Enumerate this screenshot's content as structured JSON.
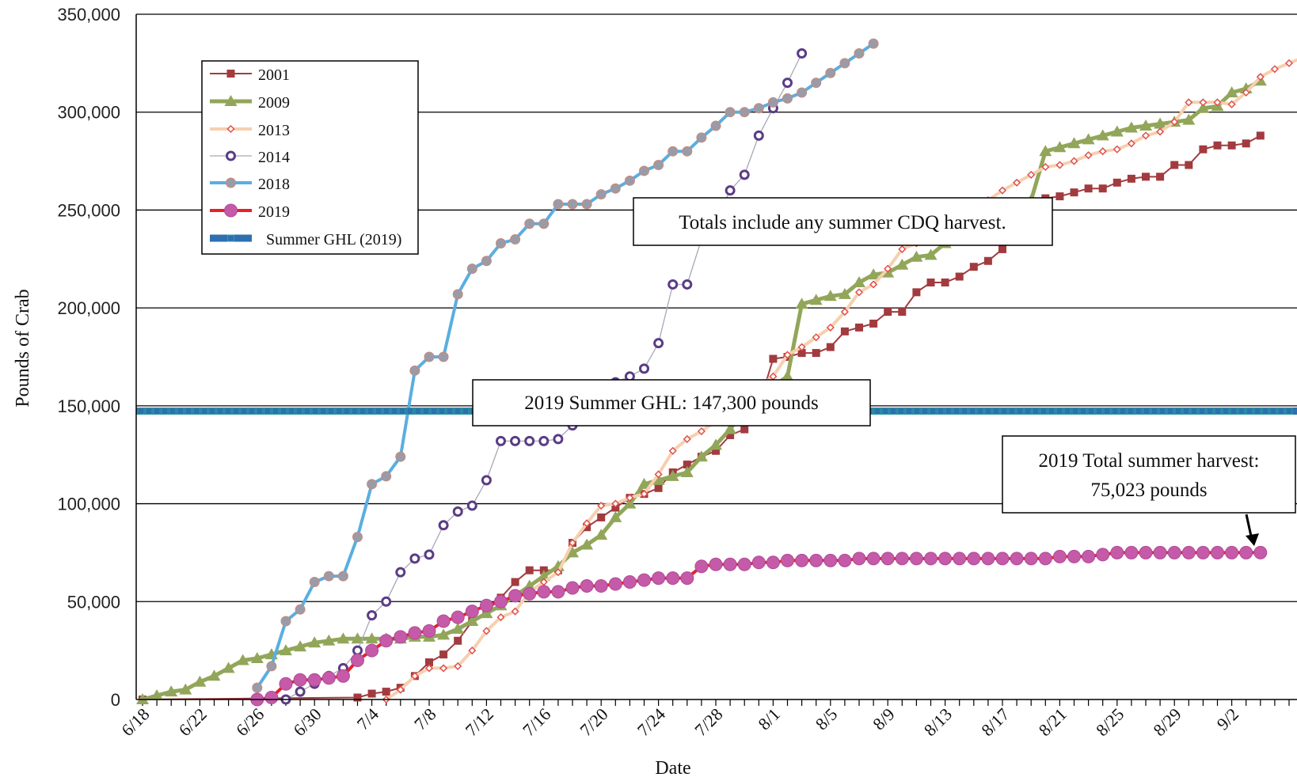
{
  "chart_data": {
    "type": "line",
    "title": "",
    "xlabel": "Date",
    "ylabel": "Pounds of Crab",
    "ylim": [
      0,
      350000
    ],
    "yticks": [
      0,
      50000,
      100000,
      150000,
      200000,
      250000,
      300000,
      350000
    ],
    "ytick_labels": [
      "0",
      "50,000",
      "100,000",
      "150,000",
      "200,000",
      "250,000",
      "300,000",
      "350,000"
    ],
    "x_start": "6/18",
    "xtick_labels": [
      "6/18",
      "6/22",
      "6/26",
      "6/30",
      "7/4",
      "7/8",
      "7/12",
      "7/16",
      "7/20",
      "7/24",
      "7/28",
      "8/1",
      "8/5",
      "8/9",
      "8/13",
      "8/17",
      "8/21",
      "8/25",
      "8/29",
      "9/2"
    ],
    "grid": "horizontal",
    "legend_position": "top-left",
    "series": [
      {
        "name": "2001",
        "color": "#a23b3f",
        "marker": "square",
        "x": [
          0,
          15,
          16,
          17,
          18,
          19,
          20,
          21,
          22,
          23,
          24,
          25,
          26,
          27,
          28,
          29,
          30,
          31,
          32,
          33,
          34,
          35,
          36,
          37,
          38,
          39,
          40,
          41,
          42,
          43,
          44,
          45,
          46,
          47,
          48,
          49,
          50,
          51,
          52,
          53,
          54,
          55,
          56,
          57,
          58,
          59,
          60,
          61,
          62,
          63,
          64,
          65,
          66,
          67,
          68,
          69,
          70,
          71,
          72,
          73,
          74,
          75,
          76,
          77,
          78
        ],
        "y": [
          0,
          1000,
          3000,
          4000,
          6000,
          12000,
          19000,
          23000,
          30000,
          40000,
          45000,
          52000,
          60000,
          66000,
          66000,
          66000,
          80000,
          88000,
          93000,
          98000,
          103000,
          105000,
          108000,
          116000,
          120000,
          124000,
          127000,
          135000,
          138000,
          150000,
          174000,
          175000,
          177000,
          177000,
          180000,
          188000,
          190000,
          192000,
          198000,
          198000,
          208000,
          213000,
          213000,
          216000,
          221000,
          224000,
          230000,
          240000,
          254000,
          256000,
          257000,
          259000,
          261000,
          261000,
          264000,
          266000,
          267000,
          267000,
          273000,
          273000,
          281000,
          283000,
          283000,
          284000,
          288000
        ]
      },
      {
        "name": "2009",
        "color": "#92a65a",
        "marker": "triangle",
        "x": [
          0,
          1,
          2,
          3,
          4,
          5,
          6,
          7,
          8,
          9,
          10,
          11,
          12,
          13,
          14,
          15,
          16,
          17,
          18,
          19,
          20,
          21,
          22,
          23,
          24,
          25,
          26,
          27,
          28,
          29,
          30,
          31,
          32,
          33,
          34,
          35,
          36,
          37,
          38,
          39,
          40,
          41,
          42,
          43,
          44,
          45,
          46,
          47,
          48,
          49,
          50,
          51,
          52,
          53,
          54,
          55,
          56,
          57,
          58,
          59,
          60,
          61,
          62,
          63,
          64,
          65,
          66,
          67,
          68,
          69,
          70,
          71,
          72,
          73,
          74,
          75,
          76,
          77,
          78
        ],
        "y": [
          0,
          2000,
          4000,
          5000,
          9000,
          12000,
          16000,
          20000,
          21000,
          23000,
          25000,
          27000,
          29000,
          30000,
          31000,
          31000,
          31000,
          31000,
          31000,
          32000,
          32000,
          33000,
          36000,
          40000,
          44000,
          48000,
          53000,
          58000,
          63000,
          68000,
          75000,
          79000,
          84000,
          93000,
          100000,
          110000,
          112000,
          114000,
          116000,
          124000,
          130000,
          138000,
          148000,
          155000,
          160000,
          165000,
          202000,
          204000,
          206000,
          207000,
          213000,
          217000,
          218000,
          222000,
          226000,
          227000,
          233000,
          238000,
          240000,
          245000,
          250000,
          252000,
          255000,
          280000,
          282000,
          284000,
          286000,
          288000,
          290000,
          292000,
          293000,
          294000,
          295000,
          296000,
          302000,
          303000,
          310000,
          312000,
          316000
        ]
      },
      {
        "name": "2013",
        "color": "#e0504a",
        "line_color": "#f7cfaf",
        "marker": "diamond",
        "x": [
          17,
          18,
          19,
          20,
          21,
          22,
          23,
          24,
          25,
          26,
          27,
          28,
          29,
          30,
          31,
          32,
          33,
          34,
          35,
          36,
          37,
          38,
          39,
          40,
          41,
          42,
          43,
          44,
          45,
          46,
          47,
          48,
          49,
          50,
          51,
          52,
          53,
          54,
          55,
          56,
          57,
          58,
          59,
          60,
          61,
          62,
          63,
          64,
          65,
          66,
          67,
          68,
          69,
          70,
          71,
          72,
          73,
          74,
          75,
          76,
          77,
          78,
          79,
          80,
          81
        ],
        "y": [
          0,
          5000,
          12000,
          16000,
          16000,
          17000,
          25000,
          35000,
          42000,
          45000,
          55000,
          60000,
          65000,
          80000,
          90000,
          99000,
          100000,
          103000,
          105000,
          115000,
          127000,
          133000,
          137000,
          142000,
          148000,
          155000,
          160000,
          165000,
          176000,
          180000,
          185000,
          190000,
          198000,
          208000,
          212000,
          220000,
          230000,
          233000,
          238000,
          243000,
          248000,
          252000,
          255000,
          260000,
          264000,
          268000,
          272000,
          273000,
          275000,
          278000,
          280000,
          281000,
          284000,
          288000,
          290000,
          295000,
          305000,
          305000,
          305000,
          304000,
          310000,
          318000,
          322000,
          325000,
          328000
        ]
      },
      {
        "name": "2014",
        "color": "#5a3c86",
        "line_color": "#a8a8b8",
        "marker": "circle-open",
        "x": [
          10,
          11,
          12,
          13,
          14,
          15,
          16,
          17,
          18,
          19,
          20,
          21,
          22,
          23,
          24,
          25,
          26,
          27,
          28,
          29,
          30,
          31,
          32,
          33,
          34,
          35,
          36,
          37,
          38,
          39,
          40,
          41,
          42,
          43,
          44,
          45,
          46
        ],
        "y": [
          0,
          4000,
          8000,
          12000,
          16000,
          25000,
          43000,
          50000,
          65000,
          72000,
          74000,
          89000,
          96000,
          99000,
          112000,
          132000,
          132000,
          132000,
          132000,
          133000,
          140000,
          148000,
          155000,
          162000,
          165000,
          169000,
          182000,
          212000,
          212000,
          235000,
          245000,
          260000,
          268000,
          288000,
          302000,
          315000,
          330000
        ]
      },
      {
        "name": "2018",
        "color": "#9b9ba8",
        "line_color": "#5aaee0",
        "marker": "circle",
        "x": [
          8,
          9,
          10,
          11,
          12,
          13,
          14,
          15,
          16,
          17,
          18,
          19,
          20,
          21,
          22,
          23,
          24,
          25,
          26,
          27,
          28,
          29,
          30,
          31,
          32,
          33,
          34,
          35,
          36,
          37,
          38,
          39,
          40,
          41,
          42,
          43,
          44,
          45,
          46,
          47,
          48,
          49,
          50,
          51
        ],
        "y": [
          6000,
          17000,
          40000,
          46000,
          60000,
          63000,
          63000,
          83000,
          110000,
          114000,
          124000,
          168000,
          175000,
          175000,
          207000,
          220000,
          224000,
          233000,
          235000,
          243000,
          243000,
          253000,
          253000,
          253000,
          258000,
          261000,
          265000,
          270000,
          273000,
          280000,
          280000,
          287000,
          293000,
          300000,
          300000,
          302000,
          305000,
          307000,
          310000,
          315000,
          320000,
          325000,
          330000,
          335000
        ]
      },
      {
        "name": "2019",
        "color": "#c55aa8",
        "line_color": "#e8202a",
        "marker": "circle-big",
        "x": [
          8,
          9,
          10,
          11,
          12,
          13,
          14,
          15,
          16,
          17,
          18,
          19,
          20,
          21,
          22,
          23,
          24,
          25,
          26,
          27,
          28,
          29,
          30,
          31,
          32,
          33,
          34,
          35,
          36,
          37,
          38,
          39,
          40,
          41,
          42,
          43,
          44,
          45,
          46,
          47,
          48,
          49,
          50,
          51,
          52,
          53,
          54,
          55,
          56,
          57,
          58,
          59,
          60,
          61,
          62,
          63,
          64,
          65,
          66,
          67,
          68,
          69,
          70,
          71,
          72,
          73,
          74,
          75,
          76,
          77,
          78
        ],
        "y": [
          0,
          1000,
          8000,
          10000,
          10000,
          11000,
          12000,
          20000,
          25000,
          30000,
          32000,
          34000,
          35000,
          40000,
          42000,
          45000,
          48000,
          50000,
          53000,
          54000,
          55000,
          55000,
          57000,
          58000,
          58000,
          59000,
          60000,
          61000,
          62000,
          62000,
          62000,
          68000,
          69000,
          69000,
          69000,
          70000,
          70000,
          71000,
          71000,
          71000,
          71000,
          71000,
          72000,
          72000,
          72000,
          72000,
          72000,
          72000,
          72000,
          72000,
          72000,
          72000,
          72000,
          72000,
          72000,
          72000,
          73000,
          73000,
          73000,
          74000,
          75000,
          75000,
          75000,
          75000,
          75000,
          75000,
          75000,
          75000,
          75000,
          75000,
          75023
        ]
      },
      {
        "name": "Summer GHL (2019)",
        "color": "#2e6fb0",
        "marker": "square-small",
        "type": "constant",
        "value": 147300
      }
    ],
    "annotations": {
      "cdq": "Totals include any summer CDQ harvest.",
      "ghl": "2019 Summer GHL: 147,300 pounds",
      "total_line1": "2019 Total summer harvest:",
      "total_line2": "75,023 pounds"
    }
  }
}
